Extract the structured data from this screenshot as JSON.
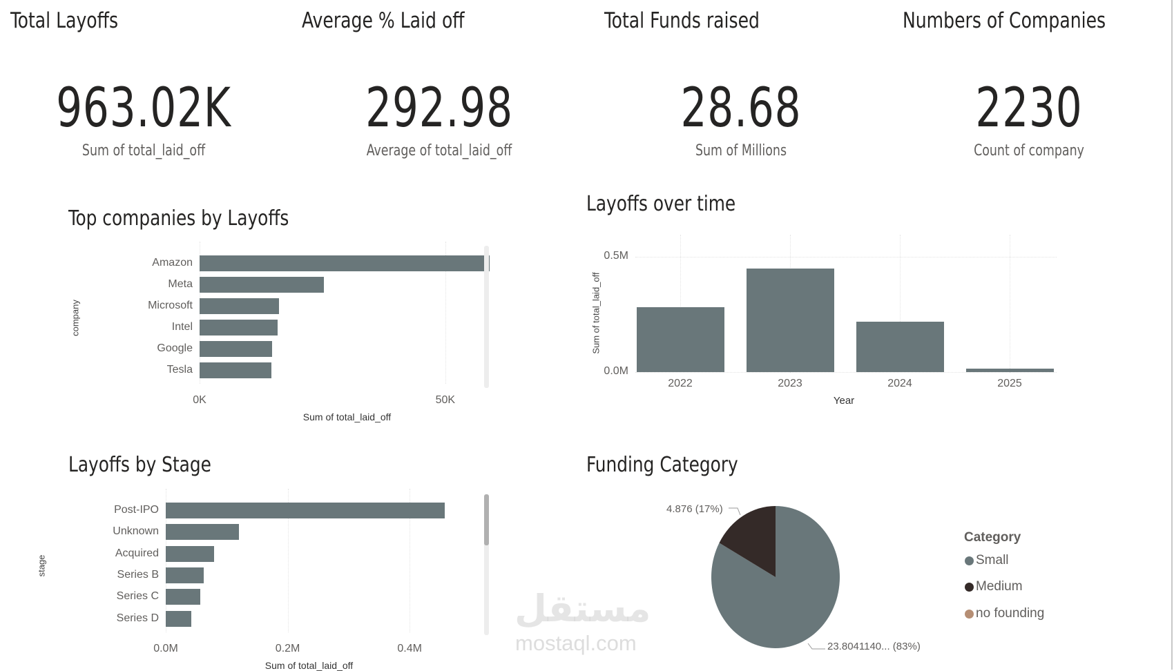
{
  "kpis": [
    {
      "title": "Total Layoffs",
      "value": "963.02K",
      "subtitle": "Sum of total_laid_off"
    },
    {
      "title": "Average % Laid off",
      "value": "292.98",
      "subtitle": "Average of total_laid_off"
    },
    {
      "title": "Total Funds raised",
      "value": "28.68",
      "subtitle": "Sum of Millions"
    },
    {
      "title": "Numbers of Companies",
      "value": "2230",
      "subtitle": "Count of company"
    }
  ],
  "watermark": {
    "arabic": "مستقل",
    "latin": "mostaql.com"
  },
  "chart_data": [
    {
      "id": "companies",
      "type": "bar",
      "orientation": "horizontal",
      "title": "Top companies by Layoffs",
      "categories": [
        "Amazon",
        "Meta",
        "Microsoft",
        "Intel",
        "Google",
        "Tesla"
      ],
      "values": [
        59000,
        25300,
        16100,
        15900,
        14800,
        14600
      ],
      "xlabel": "Sum of total_laid_off",
      "ylabel": "company",
      "xticks": [
        {
          "v": 0,
          "label": "0K"
        },
        {
          "v": 50000,
          "label": "50K"
        }
      ],
      "xlim": [
        0,
        60000
      ]
    },
    {
      "id": "years",
      "type": "bar",
      "orientation": "vertical",
      "title": "Layoffs over time",
      "categories": [
        "2022",
        "2023",
        "2024",
        "2025"
      ],
      "values": [
        280000,
        449000,
        218000,
        15000
      ],
      "xlabel": "Year",
      "ylabel": "Sum of total_laid_off",
      "yticks": [
        {
          "v": 0,
          "label": "0.0M"
        },
        {
          "v": 500000,
          "label": "0.5M"
        }
      ],
      "ylim": [
        0,
        500000
      ]
    },
    {
      "id": "stages",
      "type": "bar",
      "orientation": "horizontal",
      "title": "Layoffs by Stage",
      "categories": [
        "Post-IPO",
        "Unknown",
        "Acquired",
        "Series B",
        "Series C",
        "Series D"
      ],
      "values": [
        458000,
        120000,
        79000,
        62500,
        57000,
        42000
      ],
      "xlabel": "Sum of total_laid_off",
      "ylabel": "stage",
      "xticks": [
        {
          "v": 0,
          "label": "0.0M"
        },
        {
          "v": 200000,
          "label": "0.2M"
        },
        {
          "v": 400000,
          "label": "0.4M"
        }
      ],
      "xlim": [
        0,
        470000
      ]
    },
    {
      "id": "funding",
      "type": "pie",
      "title": "Funding Category",
      "legend_title": "Category",
      "legend_position": "right",
      "slices": [
        {
          "name": "Small",
          "value": 23.804114,
          "label": "23.8041140... (83%)",
          "color": "#69777a"
        },
        {
          "name": "Medium",
          "value": 4.876,
          "label": "4.876 (17%)",
          "color": "#342a28"
        },
        {
          "name": "no founding",
          "value": 0,
          "label": "",
          "color": "#b58e74"
        }
      ]
    }
  ]
}
